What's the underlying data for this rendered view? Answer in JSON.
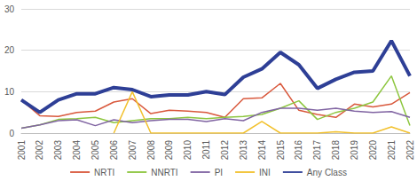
{
  "chart_data": {
    "type": "line",
    "categories": [
      "2001",
      "2002",
      "2003",
      "2004",
      "2005",
      "2006",
      "2007",
      "2008",
      "2009",
      "2010",
      "2011",
      "2012",
      "2013",
      "2014",
      "2015",
      "2016",
      "2017",
      "2018",
      "2019",
      "2020",
      "2021",
      "2022"
    ],
    "series": [
      {
        "name": "NRTI",
        "color": "#d9593d",
        "values": [
          8,
          4.2,
          4,
          5,
          5.3,
          7.5,
          8.3,
          4.7,
          5.5,
          5.3,
          5,
          3.8,
          8.3,
          8.5,
          12,
          5.5,
          4.5,
          3.8,
          7,
          6.3,
          7,
          9.8
        ]
      },
      {
        "name": "NNRTI",
        "color": "#8dc63f",
        "values": [
          1.2,
          2,
          3.3,
          3.5,
          3.8,
          2.5,
          3,
          3.5,
          3.5,
          3.8,
          3.5,
          3.8,
          4,
          4.5,
          6,
          7.8,
          3.3,
          5,
          6,
          7.5,
          13.8,
          1.8
        ]
      },
      {
        "name": "PI",
        "color": "#8064a2",
        "values": [
          1.2,
          2,
          3,
          3.2,
          1.8,
          3.2,
          2.5,
          3,
          3.3,
          3.3,
          2.8,
          3.5,
          3,
          5,
          6,
          6,
          5.5,
          6,
          5.3,
          5,
          5.2,
          3.8
        ]
      },
      {
        "name": "INI",
        "color": "#f2c12e",
        "values": [
          null,
          null,
          null,
          null,
          null,
          0,
          10,
          0,
          0,
          0,
          0,
          0,
          0,
          2.8,
          0,
          0,
          0,
          0.3,
          0,
          0,
          1.5,
          0
        ]
      },
      {
        "name": "Any Class",
        "color": "#2e3f96",
        "values": [
          8,
          5,
          8,
          9.5,
          9.5,
          11,
          10.5,
          8.8,
          9.2,
          9.2,
          10,
          9.3,
          13.5,
          15.5,
          19.5,
          16.5,
          10.8,
          13,
          14.7,
          15,
          22.3,
          13.8
        ]
      }
    ],
    "ylim": [
      0,
      30
    ],
    "yticks": [
      0,
      10,
      20,
      30
    ],
    "grid": true,
    "legend": "bottom"
  }
}
